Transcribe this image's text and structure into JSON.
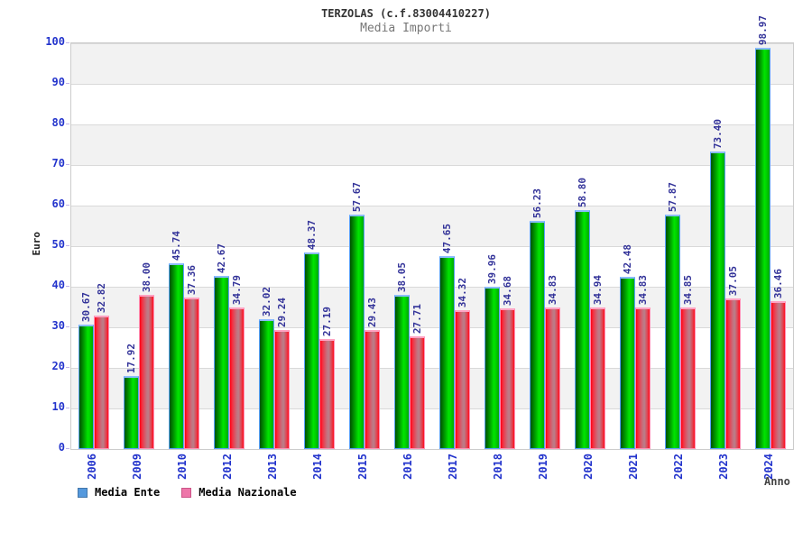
{
  "header": {
    "title": "TERZOLAS (c.f.83004410227)",
    "subtitle": "Media Importi"
  },
  "chart_data": {
    "type": "bar",
    "title": "TERZOLAS (c.f.83004410227)",
    "subtitle": "Media Importi",
    "xlabel": "Anno",
    "ylabel": "Euro",
    "ylim": [
      0,
      100
    ],
    "ytick_step": 10,
    "grid": "horizontal",
    "band_fill": "alternating",
    "legend_position": "bottom-left",
    "value_labels": "rotated-90-above-bars",
    "categories": [
      "2006",
      "2009",
      "2010",
      "2012",
      "2013",
      "2014",
      "2015",
      "2016",
      "2017",
      "2018",
      "2019",
      "2020",
      "2021",
      "2022",
      "2023",
      "2024"
    ],
    "series": [
      {
        "name": "Media Ente",
        "bar_color": "#00cc00",
        "bar_border_color": "#5aa2ff",
        "legend_swatch_color": "#5599dd",
        "values": [
          30.67,
          17.92,
          45.74,
          42.67,
          32.02,
          48.37,
          57.67,
          38.05,
          47.65,
          39.96,
          56.23,
          58.8,
          42.48,
          57.87,
          73.4,
          98.97
        ]
      },
      {
        "name": "Media Nazionale",
        "bar_color": "#ff2233",
        "bar_border_color": "#ff8fb4",
        "legend_swatch_color": "#ee77aa",
        "values": [
          32.82,
          38.0,
          37.36,
          34.79,
          29.24,
          27.19,
          29.43,
          27.71,
          34.32,
          34.68,
          34.83,
          34.94,
          34.83,
          34.85,
          37.05,
          36.46
        ]
      }
    ]
  },
  "colors": {
    "axis_label_blue": "#2233cc",
    "value_label_navy": "#333399",
    "plot_border": "#cccccc",
    "gridline": "#d9d9d9",
    "band_gray": "#f2f2f2",
    "title_text": "#333333",
    "subtitle_text": "#777777"
  }
}
